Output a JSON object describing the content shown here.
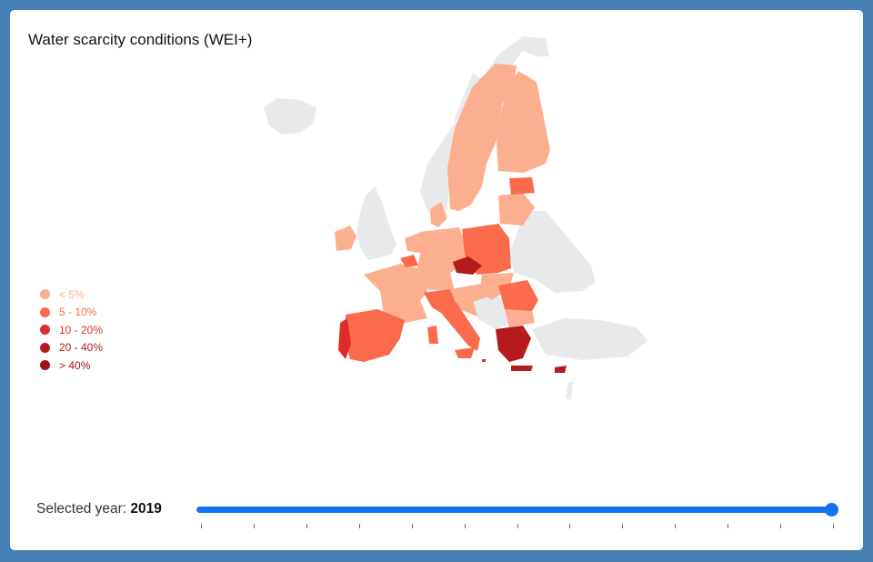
{
  "title": "Water scarcity conditions (WEI+)",
  "legend": [
    {
      "label": "< 5%",
      "color": "#fcaf8e"
    },
    {
      "label": "5 - 10%",
      "color": "#fb6a4a"
    },
    {
      "label": "10 - 20%",
      "color": "#de2d26"
    },
    {
      "label": "20 - 40%",
      "color": "#b51b1c"
    },
    {
      "label": "> 40%",
      "color": "#a50f15"
    }
  ],
  "no_data_color": "#e8e9eb",
  "slider": {
    "label": "Selected year:",
    "value": "2019",
    "position_fraction": 1.0,
    "tick_count": 13
  }
}
